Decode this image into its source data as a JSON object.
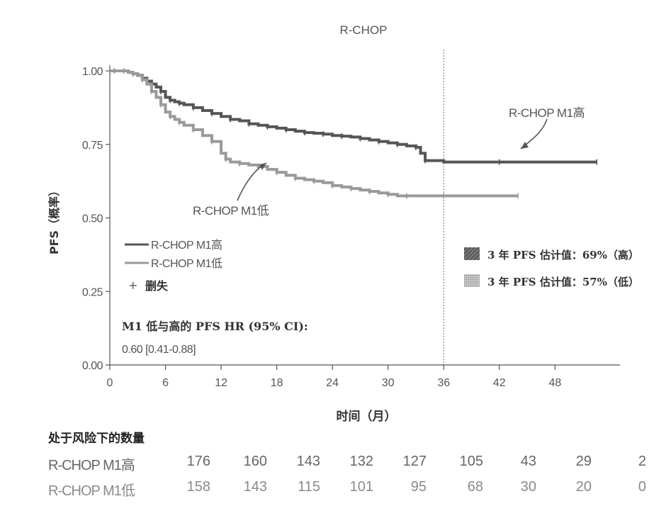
{
  "chart_data": {
    "type": "line",
    "title": "R-CHOP",
    "xlabel": "时间（月）",
    "ylabel": "PFS（概率）",
    "xlim": [
      0,
      55
    ],
    "ylim": [
      0,
      1
    ],
    "xticks": [
      0,
      6,
      12,
      18,
      24,
      30,
      36,
      42,
      48
    ],
    "yticks": [
      "0.00",
      "0.25",
      "0.50",
      "0.75",
      "1.00"
    ],
    "reference_line_x": 36,
    "grid": false,
    "series": [
      {
        "name": "R-CHOP M1高",
        "color": "#555555",
        "x": [
          0,
          0.5,
          1,
          1.5,
          2,
          2.5,
          3,
          3.5,
          4,
          4.5,
          5,
          5.5,
          6,
          6.5,
          7,
          7.5,
          8,
          9,
          10,
          11,
          12,
          13,
          14,
          15,
          16,
          17,
          18,
          19,
          20,
          21,
          22,
          23,
          24,
          25,
          26,
          27,
          28,
          29,
          30,
          31,
          32,
          33,
          33.5,
          34,
          36,
          42,
          48,
          52.5
        ],
        "y": [
          1.0,
          1.0,
          1.0,
          1.0,
          0.995,
          0.99,
          0.985,
          0.975,
          0.965,
          0.955,
          0.945,
          0.93,
          0.91,
          0.9,
          0.895,
          0.89,
          0.885,
          0.875,
          0.865,
          0.855,
          0.845,
          0.835,
          0.83,
          0.82,
          0.815,
          0.81,
          0.805,
          0.8,
          0.795,
          0.79,
          0.788,
          0.785,
          0.78,
          0.778,
          0.775,
          0.77,
          0.765,
          0.76,
          0.755,
          0.75,
          0.745,
          0.74,
          0.72,
          0.695,
          0.69,
          0.69,
          0.69,
          0.69
        ]
      },
      {
        "name": "R-CHOP M1低",
        "color": "#9a9a9a",
        "x": [
          0,
          0.5,
          1,
          1.5,
          2,
          2.5,
          3,
          3.5,
          4,
          4.5,
          5,
          5.5,
          6,
          6.5,
          7,
          7.5,
          8,
          9,
          10,
          11,
          12,
          12.5,
          13,
          14,
          15,
          16,
          17,
          18,
          19,
          20,
          21,
          22,
          23,
          24,
          25,
          26,
          27,
          28,
          29,
          30,
          31,
          32,
          34,
          36,
          40,
          44
        ],
        "y": [
          1.0,
          1.0,
          1.0,
          1.0,
          0.995,
          0.99,
          0.985,
          0.97,
          0.955,
          0.93,
          0.91,
          0.885,
          0.86,
          0.845,
          0.835,
          0.825,
          0.815,
          0.8,
          0.78,
          0.76,
          0.72,
          0.7,
          0.69,
          0.685,
          0.68,
          0.675,
          0.665,
          0.655,
          0.645,
          0.635,
          0.63,
          0.625,
          0.62,
          0.61,
          0.605,
          0.6,
          0.595,
          0.59,
          0.585,
          0.58,
          0.575,
          0.575,
          0.575,
          0.575,
          0.575,
          0.575
        ]
      }
    ],
    "annotations": [
      {
        "text": "R-CHOP M1高",
        "near_series": "R-CHOP M1高"
      },
      {
        "text": "R-CHOP M1低",
        "near_series": "R-CHOP M1低"
      }
    ],
    "legend": {
      "placement": "left",
      "items": [
        {
          "label": "R-CHOP M1高",
          "symbol": "line",
          "color": "#555555"
        },
        {
          "label": "R-CHOP M1低",
          "symbol": "line",
          "color": "#9a9a9a"
        },
        {
          "label": "删失",
          "symbol": "+",
          "color": "#555555"
        }
      ]
    },
    "estimates": {
      "placement": "right",
      "items": [
        {
          "label": "3 年 PFS 估计值：69%（高）",
          "color": "#555555",
          "pattern": "hatch"
        },
        {
          "label": "3 年 PFS 估计值：57%（低）",
          "color": "#9a9a9a",
          "pattern": "dots"
        }
      ]
    },
    "hr_text": {
      "line1": "M1 低与高的 PFS HR (95% CI):",
      "line2": "0.60 [0.41-0.88]"
    }
  },
  "risk_table": {
    "title": "处于风险下的数量",
    "rows": [
      {
        "label": "R-CHOP M1高",
        "values": [
          176,
          160,
          143,
          132,
          127,
          105,
          43,
          29,
          2
        ]
      },
      {
        "label": "R-CHOP M1低",
        "values": [
          158,
          143,
          115,
          101,
          95,
          68,
          30,
          20,
          0
        ]
      }
    ]
  }
}
